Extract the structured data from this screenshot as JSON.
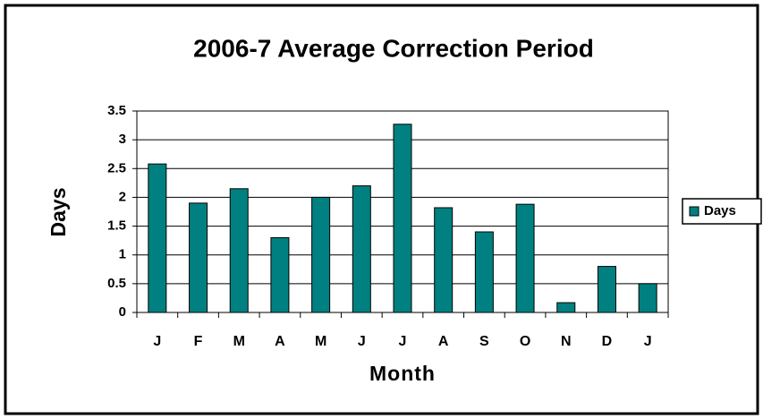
{
  "chart_data": {
    "type": "bar",
    "title": "2006-7 Average Correction Period",
    "x_label": "Month",
    "y_label": "Days",
    "categories": [
      "J",
      "F",
      "M",
      "A",
      "M",
      "J",
      "J",
      "A",
      "S",
      "O",
      "N",
      "D",
      "J"
    ],
    "series": [
      {
        "name": "Days",
        "color": "#008080",
        "values": [
          2.58,
          1.9,
          2.15,
          1.3,
          2.0,
          2.2,
          3.27,
          1.82,
          1.4,
          1.88,
          0.17,
          0.8,
          0.5
        ]
      }
    ],
    "ylim": [
      0,
      3.5
    ],
    "yticks": [
      0,
      0.5,
      1,
      1.5,
      2,
      2.5,
      3,
      3.5
    ],
    "grid": true,
    "legend": "right"
  }
}
